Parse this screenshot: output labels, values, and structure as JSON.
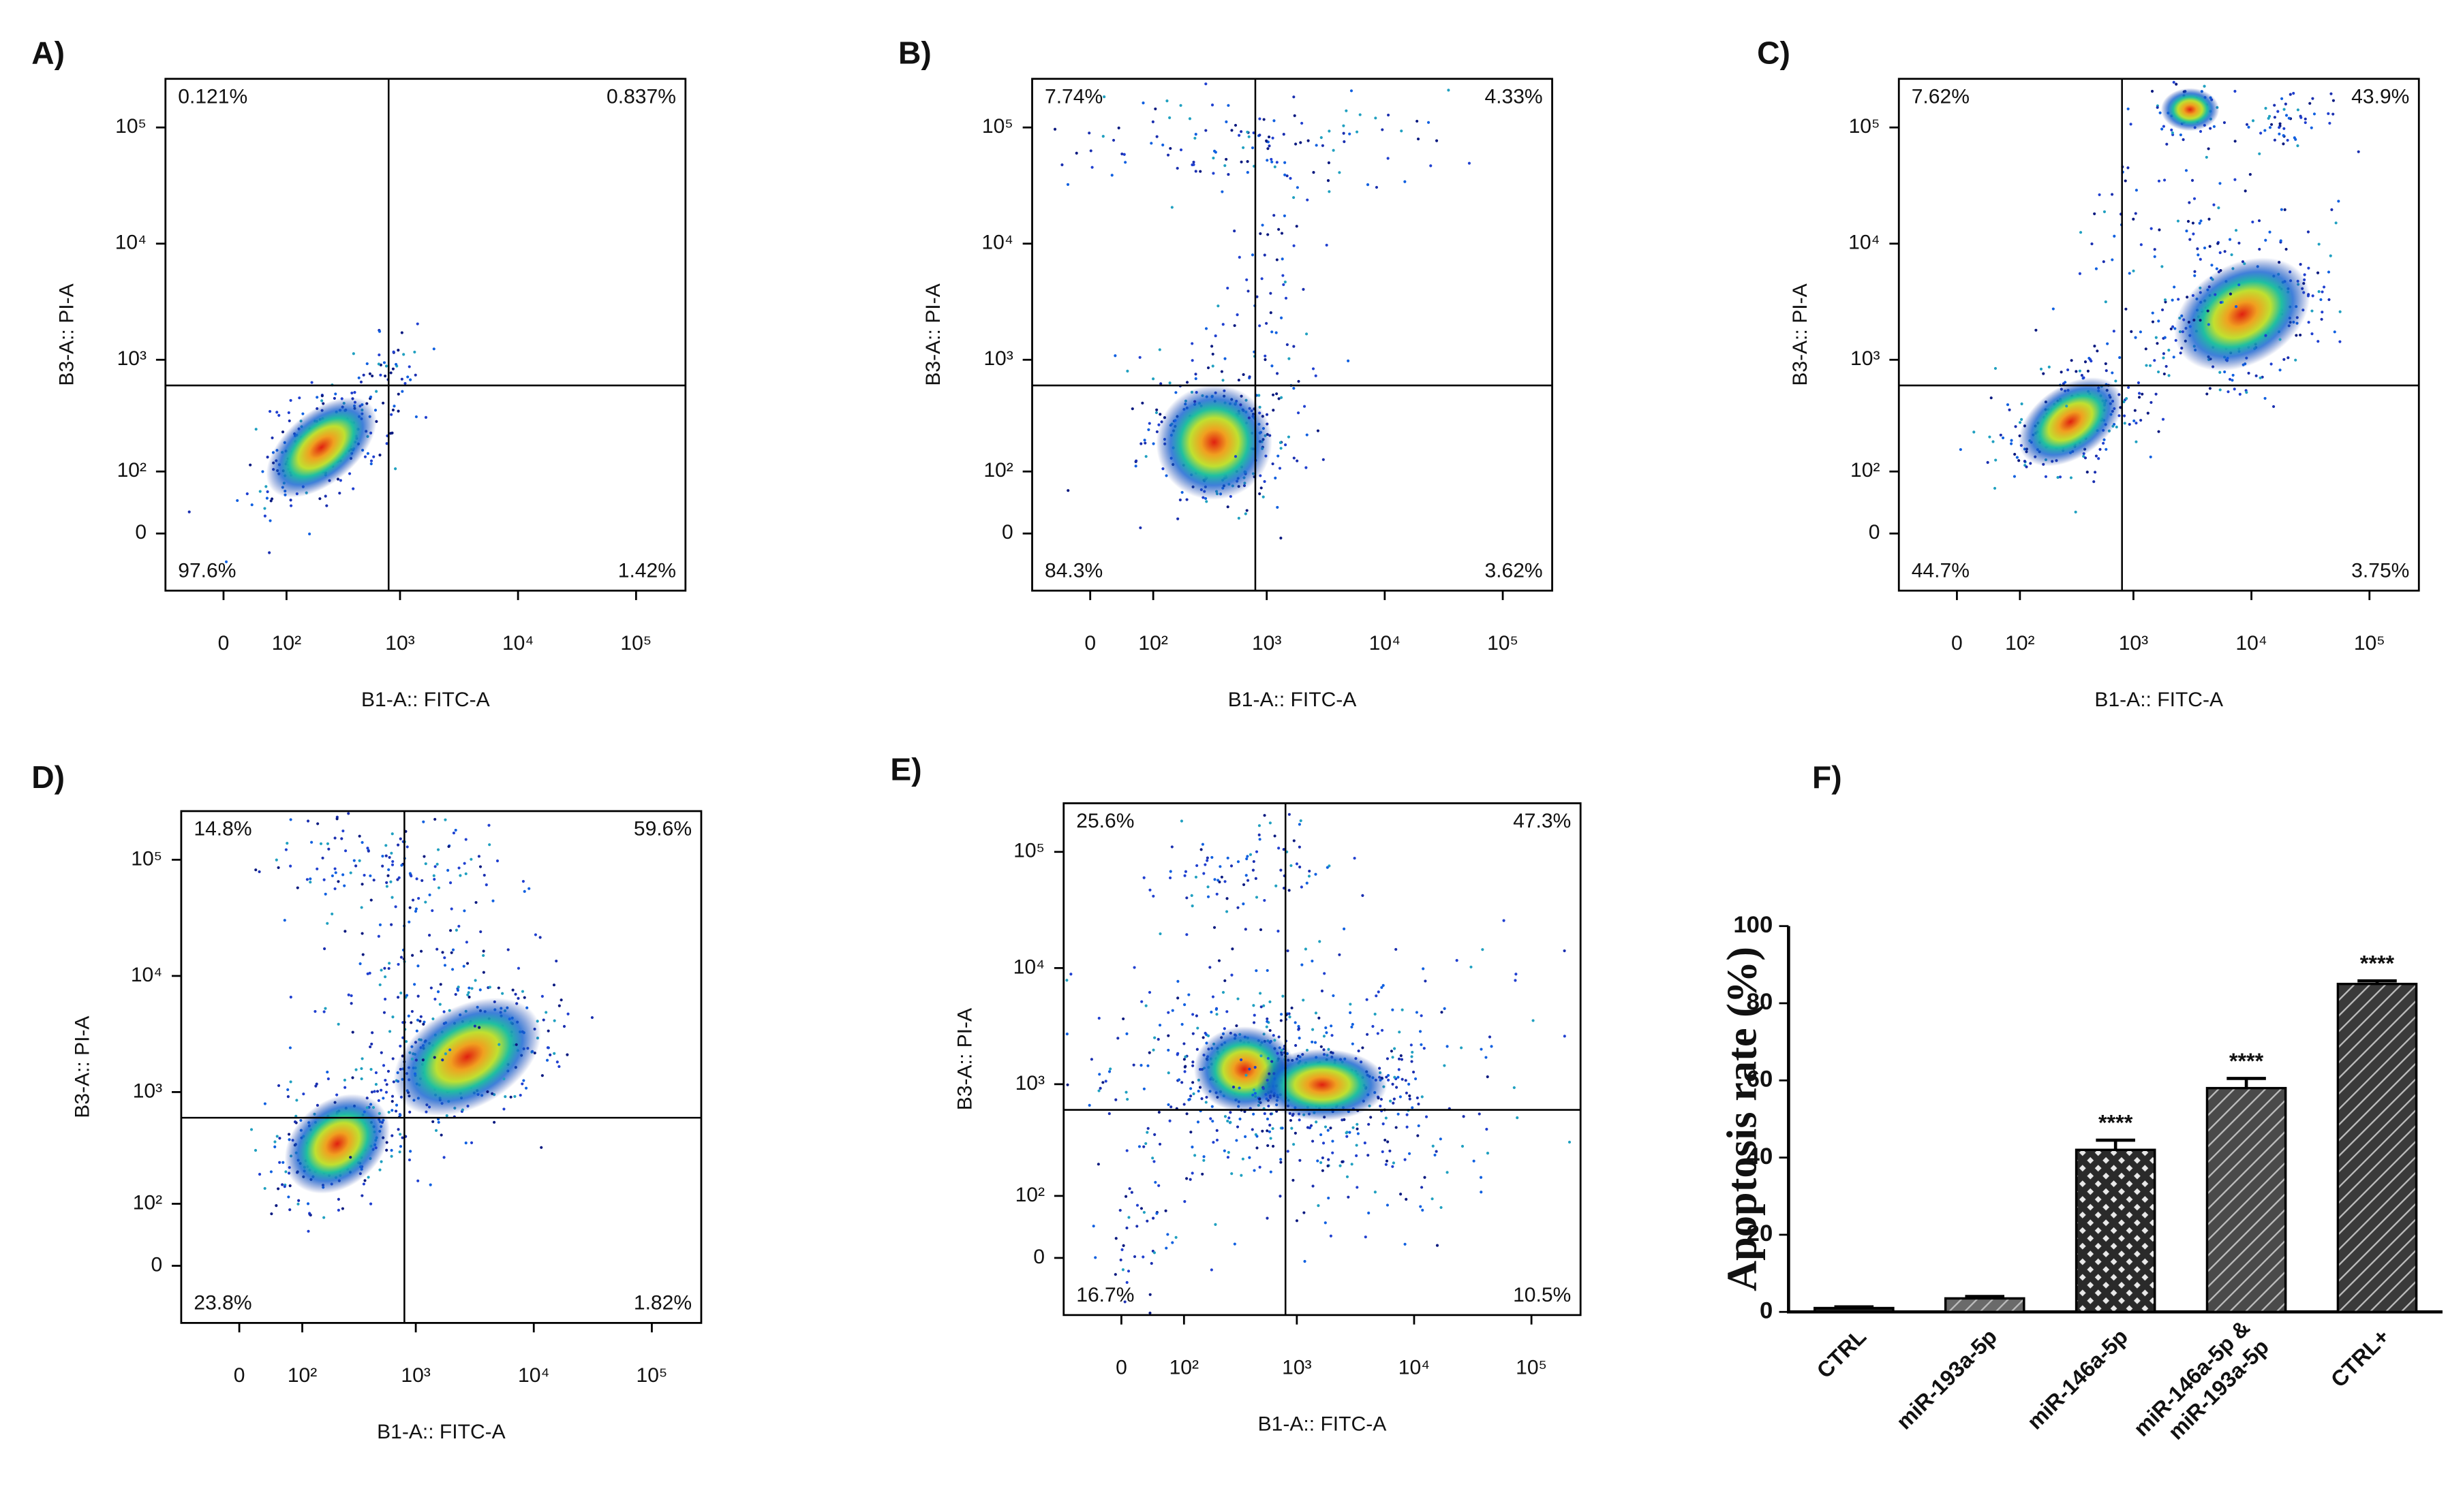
{
  "chart_data": [
    {
      "type": "flow-quadrant",
      "title": "A)",
      "x_label": "B1-A:: FITC-A",
      "y_label": "B3-A:: PI-A",
      "scale": "biexponential",
      "xlim": [
        -89,
        262144
      ],
      "ylim": [
        -89,
        262144
      ],
      "xticks": [
        0,
        {
          "value": 100,
          "label": "10²"
        },
        {
          "value": 1000,
          "label": "10³"
        },
        {
          "value": 10000,
          "label": "10⁴"
        },
        {
          "value": 100000,
          "label": "10⁵"
        }
      ],
      "yticks": [
        0,
        {
          "value": 100,
          "label": "10²"
        },
        {
          "value": 1000,
          "label": "10³"
        },
        {
          "value": 10000,
          "label": "10⁴"
        },
        {
          "value": 100000,
          "label": "10⁵"
        }
      ],
      "gate_x": 800,
      "gate_y": 600,
      "values": [
        0.121,
        0.837,
        97.6,
        1.42
      ],
      "value_labels": [
        "0.121%",
        "0.837%",
        "97.6%",
        "1.42%"
      ]
    },
    {
      "type": "flow-quadrant",
      "title": "B)",
      "x_label": "B1-A:: FITC-A",
      "y_label": "B3-A:: PI-A",
      "scale": "biexponential",
      "xlim": [
        -89,
        262144
      ],
      "ylim": [
        -89,
        262144
      ],
      "xticks": [
        0,
        {
          "value": 100,
          "label": "10²"
        },
        {
          "value": 1000,
          "label": "10³"
        },
        {
          "value": 10000,
          "label": "10⁴"
        },
        {
          "value": 100000,
          "label": "10⁵"
        }
      ],
      "yticks": [
        0,
        {
          "value": 100,
          "label": "10²"
        },
        {
          "value": 1000,
          "label": "10³"
        },
        {
          "value": 10000,
          "label": "10⁴"
        },
        {
          "value": 100000,
          "label": "10⁵"
        }
      ],
      "gate_x": 800,
      "gate_y": 600,
      "values": [
        7.74,
        4.33,
        84.3,
        3.62
      ],
      "value_labels": [
        "7.74%",
        "4.33%",
        "84.3%",
        "3.62%"
      ]
    },
    {
      "type": "flow-quadrant",
      "title": "C)",
      "x_label": "B1-A:: FITC-A",
      "y_label": "B3-A:: PI-A",
      "scale": "biexponential",
      "xlim": [
        -89,
        262144
      ],
      "ylim": [
        -89,
        262144
      ],
      "xticks": [
        0,
        {
          "value": 100,
          "label": "10²"
        },
        {
          "value": 1000,
          "label": "10³"
        },
        {
          "value": 10000,
          "label": "10⁴"
        },
        {
          "value": 100000,
          "label": "10⁵"
        }
      ],
      "yticks": [
        0,
        {
          "value": 100,
          "label": "10²"
        },
        {
          "value": 1000,
          "label": "10³"
        },
        {
          "value": 10000,
          "label": "10⁴"
        },
        {
          "value": 100000,
          "label": "10⁵"
        }
      ],
      "gate_x": 800,
      "gate_y": 600,
      "values": [
        7.62,
        43.9,
        44.7,
        3.75
      ],
      "value_labels": [
        "7.62%",
        "43.9%",
        "44.7%",
        "3.75%"
      ]
    },
    {
      "type": "flow-quadrant",
      "title": "D)",
      "x_label": "B1-A:: FITC-A",
      "y_label": "B3-A:: PI-A",
      "scale": "biexponential",
      "xlim": [
        -89,
        262144
      ],
      "ylim": [
        -89,
        262144
      ],
      "xticks": [
        0,
        {
          "value": 100,
          "label": "10²"
        },
        {
          "value": 1000,
          "label": "10³"
        },
        {
          "value": 10000,
          "label": "10⁴"
        },
        {
          "value": 100000,
          "label": "10⁵"
        }
      ],
      "yticks": [
        0,
        {
          "value": 100,
          "label": "10²"
        },
        {
          "value": 1000,
          "label": "10³"
        },
        {
          "value": 10000,
          "label": "10⁴"
        },
        {
          "value": 100000,
          "label": "10⁵"
        }
      ],
      "gate_x": 800,
      "gate_y": 600,
      "values": [
        14.8,
        59.6,
        23.8,
        1.82
      ],
      "value_labels": [
        "14.8%",
        "59.6%",
        "23.8%",
        "1.82%"
      ]
    },
    {
      "type": "flow-quadrant",
      "title": "E)",
      "x_label": "B1-A:: FITC-A",
      "y_label": "B3-A:: PI-A",
      "scale": "biexponential",
      "xlim": [
        -89,
        262144
      ],
      "ylim": [
        -89,
        262144
      ],
      "xticks": [
        0,
        {
          "value": 100,
          "label": "10²"
        },
        {
          "value": 1000,
          "label": "10³"
        },
        {
          "value": 10000,
          "label": "10⁴"
        },
        {
          "value": 100000,
          "label": "10⁵"
        }
      ],
      "yticks": [
        0,
        {
          "value": 100,
          "label": "10²"
        },
        {
          "value": 1000,
          "label": "10³"
        },
        {
          "value": 10000,
          "label": "10⁴"
        },
        {
          "value": 100000,
          "label": "10⁵"
        }
      ],
      "gate_x": 800,
      "gate_y": 600,
      "values": [
        25.6,
        47.3,
        16.7,
        10.5
      ],
      "value_labels": [
        "25.6%",
        "47.3%",
        "16.7%",
        "10.5%"
      ]
    },
    {
      "type": "bar",
      "title": "F)",
      "y_label": "Apoptosis rate (%)",
      "categories": [
        "CTRL",
        "miR-193a-5p",
        "miR-146a-5p",
        [
          "miR-146a-5p &",
          "miR-193a-5p"
        ],
        "CTRL+"
      ],
      "values": [
        1,
        3.5,
        42,
        58,
        85
      ],
      "errors": [
        0.3,
        0.5,
        2.5,
        2.5,
        0.8
      ],
      "significance": [
        null,
        null,
        "****",
        "****",
        "****"
      ],
      "colors": [
        "#1a1a1a",
        "#6a6a6a",
        "#2a2a2a",
        "#4a4a4a",
        "#3a3a3a"
      ],
      "patterns": [
        "solid",
        "diagonal",
        "crosshatch",
        "diagonal",
        "diagonal"
      ],
      "ylim": [
        0,
        100
      ],
      "yticks": [
        0,
        20,
        40,
        60,
        80,
        100
      ]
    }
  ]
}
